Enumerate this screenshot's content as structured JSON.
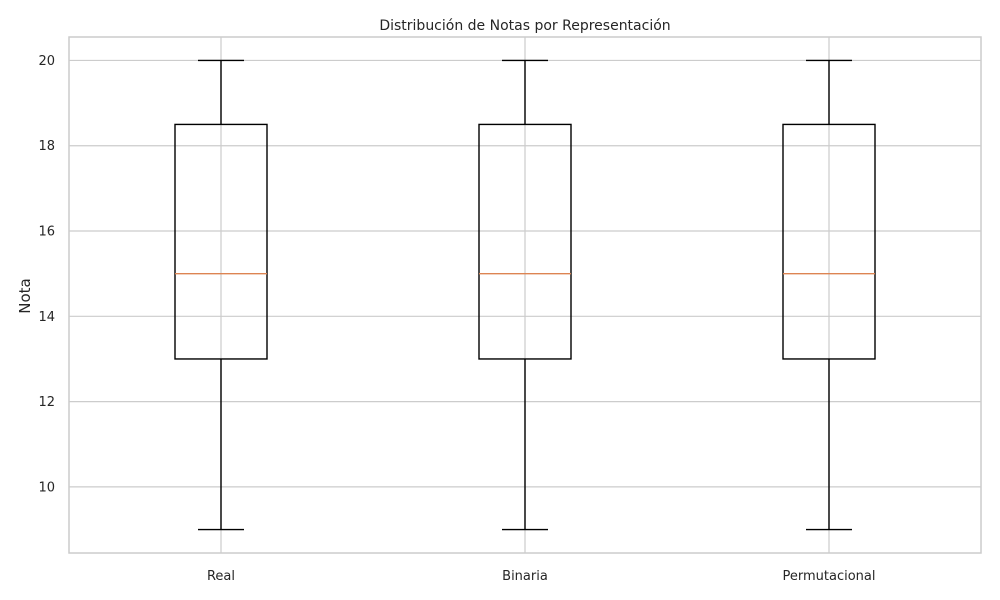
{
  "chart_data": {
    "type": "box",
    "title": "Distribución de Notas por Representación",
    "xlabel": "",
    "ylabel": "Nota",
    "ylim": [
      8.45,
      20.55
    ],
    "yticks": [
      10,
      12,
      14,
      16,
      18,
      20
    ],
    "grid": true,
    "categories": [
      "Real",
      "Binaria",
      "Permutacional"
    ],
    "boxes": [
      {
        "label": "Real",
        "whisker_low": 9,
        "q1": 13,
        "median": 15,
        "q3": 18.5,
        "whisker_high": 20
      },
      {
        "label": "Binaria",
        "whisker_low": 9,
        "q1": 13,
        "median": 15,
        "q3": 18.5,
        "whisker_high": 20
      },
      {
        "label": "Permutacional",
        "whisker_low": 9,
        "q1": 13,
        "median": 15,
        "q3": 18.5,
        "whisker_high": 20
      }
    ],
    "colors": {
      "box": "#000000",
      "median": "#dd8452",
      "grid": "#cccccc",
      "frame": "#cccccc"
    }
  }
}
